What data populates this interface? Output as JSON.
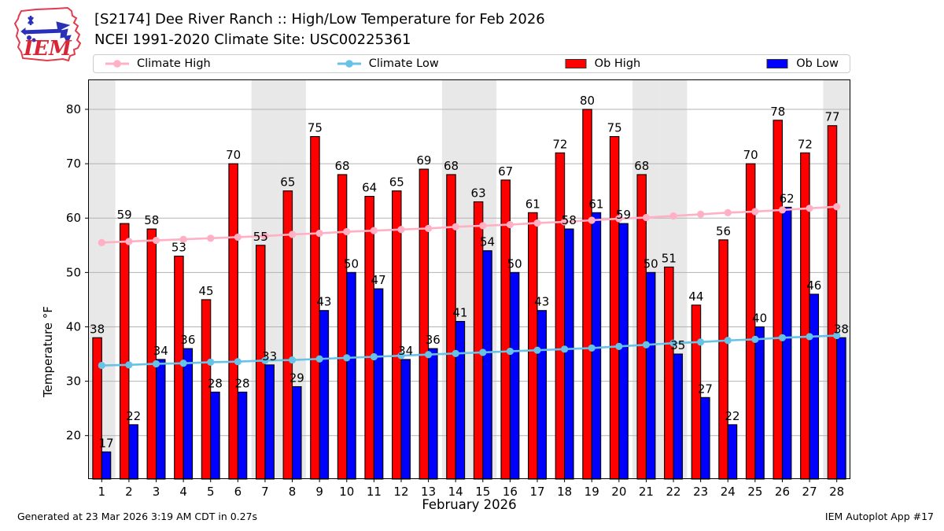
{
  "header": {
    "title_line1": "[S2174] Dee River Ranch :: High/Low Temperature for Feb 2026",
    "title_line2": "NCEI 1991-2020 Climate Site: USC00225361",
    "logo_text": "IEM"
  },
  "legend": {
    "items": [
      {
        "label": "Climate High",
        "type": "line",
        "color": "#ffb0c4"
      },
      {
        "label": "Climate Low",
        "type": "line",
        "color": "#66c2e6"
      },
      {
        "label": "Ob High",
        "type": "patch",
        "color": "#ff0000"
      },
      {
        "label": "Ob Low",
        "type": "patch",
        "color": "#0000ff"
      }
    ]
  },
  "footer": {
    "left": "Generated at 23 Mar 2026 3:19 AM CDT in 0.27s",
    "right": "IEM Autoplot App #17"
  },
  "chart_data": {
    "type": "bar",
    "title": "[S2174] Dee River Ranch :: High/Low Temperature for Feb 2026",
    "subtitle": "NCEI 1991-2020 Climate Site: USC00225361",
    "xlabel": "February 2026",
    "ylabel": "Temperature °F",
    "x": [
      1,
      2,
      3,
      4,
      5,
      6,
      7,
      8,
      9,
      10,
      11,
      12,
      13,
      14,
      15,
      16,
      17,
      18,
      19,
      20,
      21,
      22,
      23,
      24,
      25,
      26,
      27,
      28
    ],
    "series": [
      {
        "name": "Ob High",
        "type": "bar",
        "color": "#ff0000",
        "values": [
          38,
          59,
          58,
          53,
          45,
          70,
          55,
          65,
          75,
          68,
          64,
          65,
          69,
          68,
          63,
          67,
          61,
          72,
          80,
          75,
          68,
          51,
          44,
          56,
          70,
          78,
          72,
          77
        ]
      },
      {
        "name": "Ob Low",
        "type": "bar",
        "color": "#0000ff",
        "values": [
          17,
          22,
          34,
          36,
          28,
          28,
          33,
          29,
          43,
          50,
          47,
          34,
          36,
          41,
          54,
          50,
          43,
          58,
          61,
          59,
          50,
          35,
          27,
          22,
          40,
          62,
          46,
          38
        ]
      },
      {
        "name": "Climate High",
        "type": "line",
        "color": "#ffb0c4",
        "values": [
          55.5,
          55.7,
          55.9,
          56.1,
          56.3,
          56.5,
          56.7,
          57.0,
          57.2,
          57.5,
          57.7,
          57.9,
          58.1,
          58.4,
          58.6,
          58.8,
          59.1,
          59.3,
          59.6,
          59.9,
          60.1,
          60.4,
          60.7,
          61.0,
          61.2,
          61.5,
          61.8,
          62.1
        ]
      },
      {
        "name": "Climate Low",
        "type": "line",
        "color": "#66c2e6",
        "values": [
          32.9,
          33.0,
          33.2,
          33.3,
          33.5,
          33.6,
          33.8,
          33.9,
          34.1,
          34.3,
          34.5,
          34.7,
          34.9,
          35.1,
          35.3,
          35.5,
          35.7,
          35.9,
          36.1,
          36.4,
          36.7,
          37.0,
          37.2,
          37.5,
          37.7,
          38.0,
          38.2,
          38.4
        ]
      }
    ],
    "yticks": [
      20,
      30,
      40,
      50,
      60,
      70,
      80
    ],
    "ylim": [
      12,
      85.5
    ],
    "weekend_days": [
      1,
      7,
      8,
      14,
      15,
      21,
      22,
      28
    ],
    "band_color": "#e8e8e8",
    "grid_color": "#b3b3b3",
    "legend_position": "top",
    "grid": "horizontal"
  }
}
